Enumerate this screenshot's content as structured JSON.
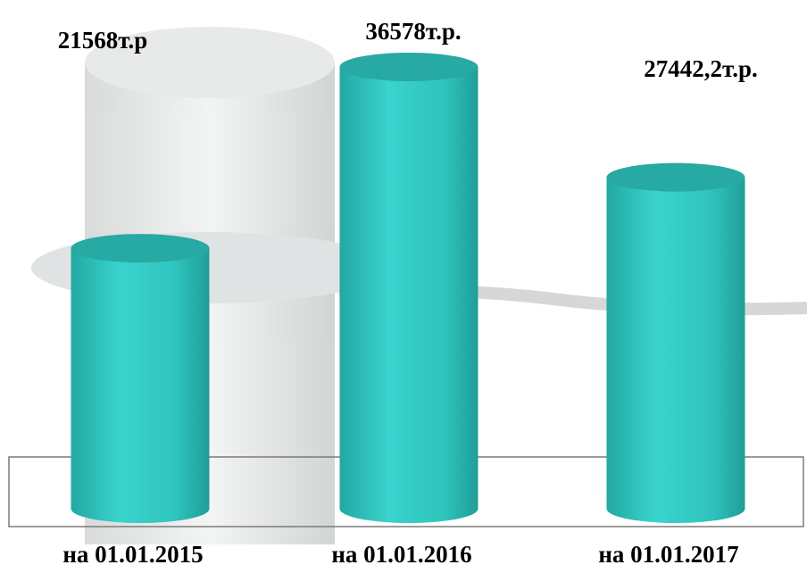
{
  "chart_data": {
    "type": "bar",
    "categories": [
      "на 01.01.2015",
      "на 01.01.2016",
      "на 01.01.2017"
    ],
    "values": [
      21568,
      36578,
      27442.2
    ],
    "value_labels": [
      "21568т.р",
      "36578т.р.",
      "27442,2т.р."
    ],
    "color": "#33c9c3"
  }
}
